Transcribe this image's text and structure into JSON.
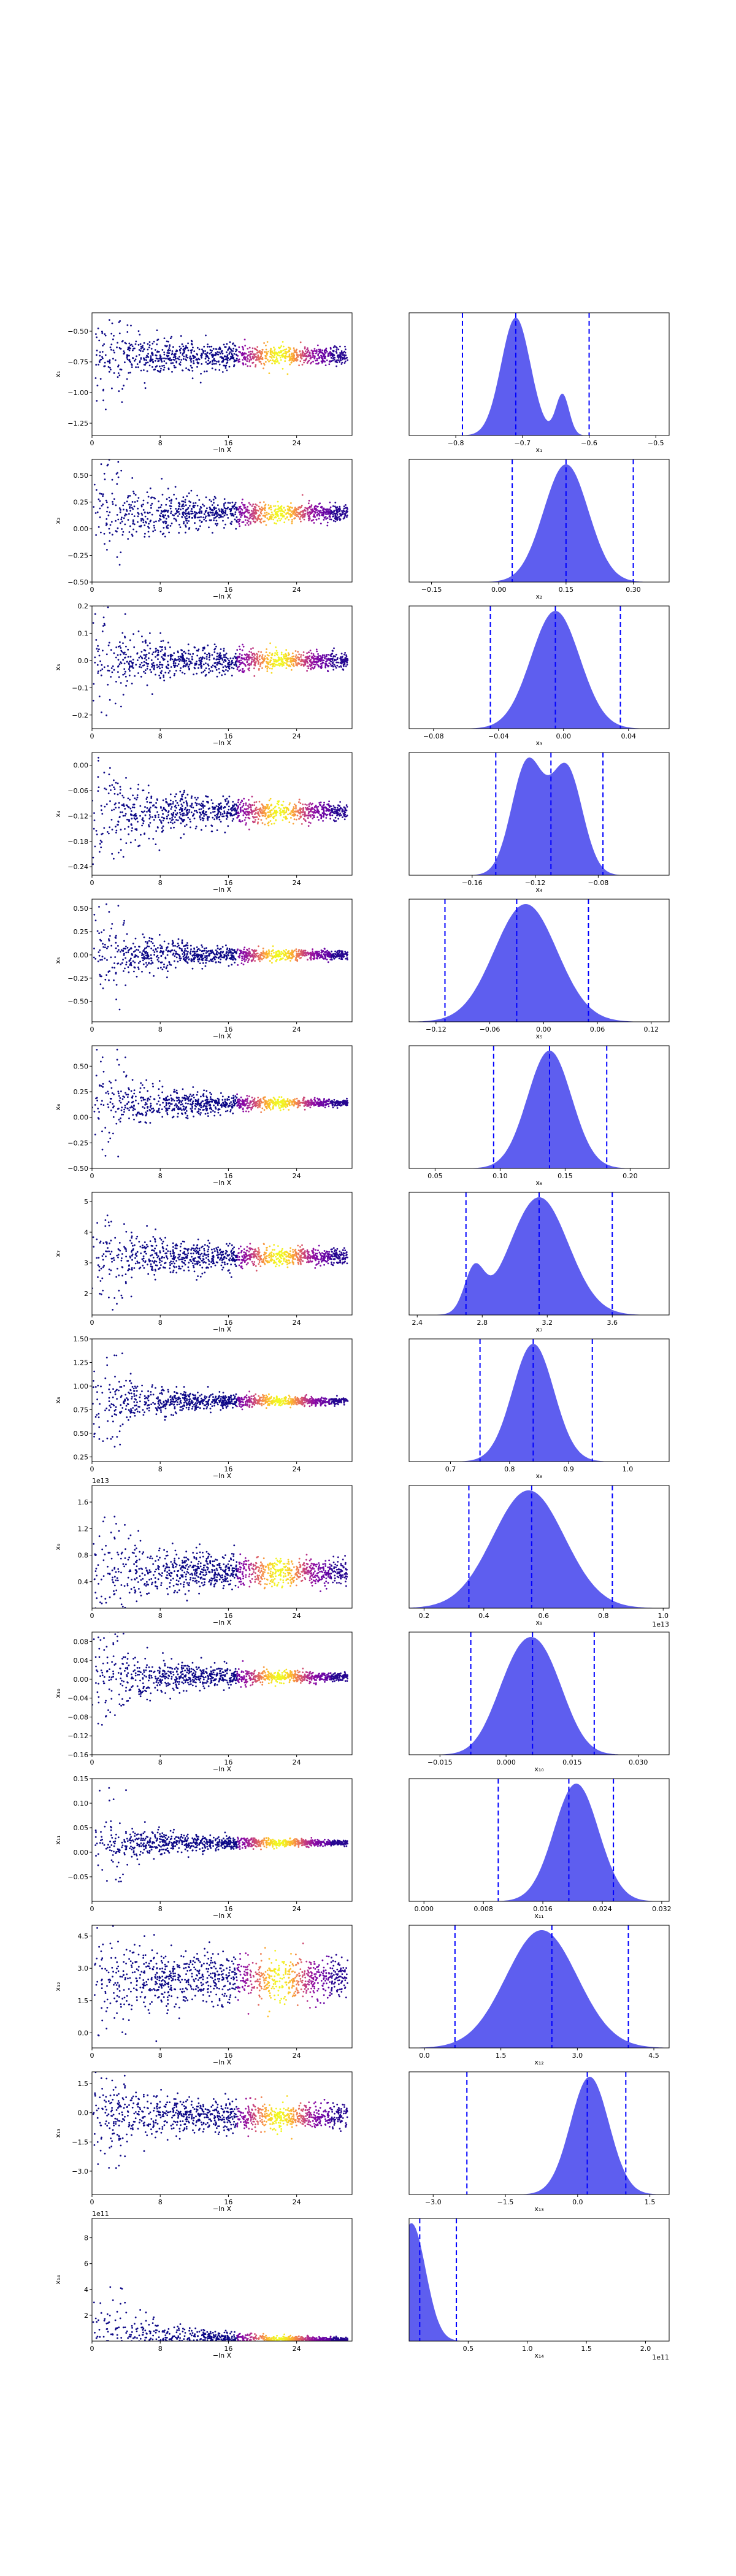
{
  "chart_data": {
    "type": "scatter",
    "description_free": true,
    "scatter_xlabel": "−ln X",
    "scatter_xticks": [
      0,
      8,
      16,
      24
    ],
    "scatter_xlim": [
      0,
      30.5
    ],
    "colormap": "plasma",
    "line_color": "#0000ff",
    "fill_color": "#5555ee",
    "dot_color": "#0d0887",
    "rows": [
      {
        "ylabel": "x₁",
        "xlabel": "x₁",
        "ylim": [
          -1.35,
          -0.35
        ],
        "yticks": [
          -1.25,
          -1.0,
          -0.75,
          -0.5
        ],
        "ytick_labels": [
          "−1.25",
          "−1.00",
          "−0.75",
          "−0.50"
        ],
        "center": -0.7,
        "spread0": 0.22,
        "spread1": 0.05,
        "kde_xlim": [
          -0.87,
          -0.48
        ],
        "kde_xticks": [
          -0.8,
          -0.7,
          -0.6,
          -0.5
        ],
        "kde_xtick_labels": [
          "−0.8",
          "−0.7",
          "−0.6",
          "−0.5"
        ],
        "vlines": [
          -0.79,
          -0.71,
          -0.6
        ],
        "peaks": [
          [
            -0.71,
            0.022,
            1.0
          ],
          [
            -0.64,
            0.01,
            0.35
          ]
        ],
        "offset": ""
      },
      {
        "ylabel": "x₂",
        "xlabel": "x₂",
        "ylim": [
          -0.5,
          0.65
        ],
        "yticks": [
          -0.5,
          -0.25,
          0.0,
          0.25,
          0.5
        ],
        "ytick_labels": [
          "−0.50",
          "−0.25",
          "0.00",
          "0.25",
          "0.50"
        ],
        "center": 0.15,
        "spread0": 0.3,
        "spread1": 0.06,
        "kde_xlim": [
          -0.2,
          0.38
        ],
        "kde_xticks": [
          -0.15,
          0.0,
          0.15,
          0.3
        ],
        "kde_xtick_labels": [
          "−0.15",
          "0.00",
          "0.15",
          "0.30"
        ],
        "vlines": [
          0.03,
          0.15,
          0.3
        ],
        "peaks": [
          [
            0.15,
            0.05,
            1.0
          ]
        ],
        "offset": ""
      },
      {
        "ylabel": "x₃",
        "xlabel": "x₃",
        "ylim": [
          -0.25,
          0.2
        ],
        "yticks": [
          -0.2,
          -0.1,
          0.0,
          0.1,
          0.2
        ],
        "ytick_labels": [
          "−0.2",
          "−0.1",
          "0.0",
          "0.1",
          "0.2"
        ],
        "center": 0.0,
        "spread0": 0.12,
        "spread1": 0.02,
        "kde_xlim": [
          -0.095,
          0.065
        ],
        "kde_xticks": [
          -0.08,
          -0.04,
          0.0,
          0.04
        ],
        "kde_xtick_labels": [
          "−0.08",
          "−0.04",
          "0.00",
          "0.04"
        ],
        "vlines": [
          -0.045,
          -0.005,
          0.035
        ],
        "peaks": [
          [
            -0.005,
            0.015,
            1.0
          ]
        ],
        "offset": ""
      },
      {
        "ylabel": "x₄",
        "xlabel": "x₄",
        "ylim": [
          -0.26,
          0.03
        ],
        "yticks": [
          -0.24,
          -0.18,
          -0.12,
          -0.06,
          0.0
        ],
        "ytick_labels": [
          "−0.24",
          "−0.18",
          "−0.12",
          "−0.06",
          "0.00"
        ],
        "center": -0.11,
        "spread0": 0.08,
        "spread1": 0.015,
        "kde_xlim": [
          -0.2,
          -0.035
        ],
        "kde_xticks": [
          -0.16,
          -0.12,
          -0.08
        ],
        "kde_xtick_labels": [
          "−0.16",
          "−0.12",
          "−0.08"
        ],
        "vlines": [
          -0.145,
          -0.11,
          -0.077
        ],
        "peaks": [
          [
            -0.125,
            0.01,
            1.0
          ],
          [
            -0.1,
            0.01,
            0.95
          ]
        ],
        "offset": ""
      },
      {
        "ylabel": "x₅",
        "xlabel": "x₅",
        "ylim": [
          -0.72,
          0.6
        ],
        "yticks": [
          -0.5,
          -0.25,
          0.0,
          0.25,
          0.5
        ],
        "ytick_labels": [
          "−0.50",
          "−0.25",
          "0.00",
          "0.25",
          "0.50"
        ],
        "center": 0.0,
        "spread0": 0.3,
        "spread1": 0.03,
        "kde_xlim": [
          -0.15,
          0.14
        ],
        "kde_xticks": [
          -0.12,
          -0.06,
          0.0,
          0.06,
          0.12
        ],
        "kde_xtick_labels": [
          "−0.12",
          "−0.06",
          "0.00",
          "0.06",
          "0.12"
        ],
        "vlines": [
          -0.11,
          -0.03,
          0.05
        ],
        "peaks": [
          [
            -0.02,
            0.035,
            1.0
          ]
        ],
        "offset": ""
      },
      {
        "ylabel": "x₆",
        "xlabel": "x₆",
        "ylim": [
          -0.5,
          0.7
        ],
        "yticks": [
          -0.5,
          -0.25,
          0.0,
          0.25,
          0.5
        ],
        "ytick_labels": [
          "−0.50",
          "−0.25",
          "0.00",
          "0.25",
          "0.50"
        ],
        "center": 0.14,
        "spread0": 0.3,
        "spread1": 0.02,
        "kde_xlim": [
          0.03,
          0.23
        ],
        "kde_xticks": [
          0.05,
          0.1,
          0.15,
          0.2
        ],
        "kde_xtick_labels": [
          "0.05",
          "0.10",
          "0.15",
          "0.20"
        ],
        "vlines": [
          0.095,
          0.138,
          0.182
        ],
        "peaks": [
          [
            0.138,
            0.017,
            1.0
          ]
        ],
        "offset": ""
      },
      {
        "ylabel": "x₇",
        "xlabel": "x₇",
        "ylim": [
          1.3,
          5.3
        ],
        "yticks": [
          2,
          3,
          4,
          5
        ],
        "ytick_labels": [
          "2",
          "3",
          "4",
          "5"
        ],
        "center": 3.2,
        "spread0": 1.0,
        "spread1": 0.18,
        "kde_xlim": [
          2.35,
          3.95
        ],
        "kde_xticks": [
          2.4,
          2.8,
          3.2,
          3.6
        ],
        "kde_xtick_labels": [
          "2.4",
          "2.8",
          "3.2",
          "3.6"
        ],
        "vlines": [
          2.7,
          3.15,
          3.6
        ],
        "peaks": [
          [
            3.15,
            0.18,
            1.0
          ],
          [
            2.75,
            0.06,
            0.35
          ]
        ],
        "offset": ""
      },
      {
        "ylabel": "x₈",
        "xlabel": "x₈",
        "ylim": [
          0.2,
          1.5
        ],
        "yticks": [
          0.25,
          0.5,
          0.75,
          1.0,
          1.25,
          1.5
        ],
        "ytick_labels": [
          "0.25",
          "0.50",
          "0.75",
          "1.00",
          "1.25",
          "1.50"
        ],
        "center": 0.84,
        "spread0": 0.3,
        "spread1": 0.02,
        "kde_xlim": [
          0.63,
          1.07
        ],
        "kde_xticks": [
          0.7,
          0.8,
          0.9,
          1.0
        ],
        "kde_xtick_labels": [
          "0.7",
          "0.8",
          "0.9",
          "1.0"
        ],
        "vlines": [
          0.75,
          0.84,
          0.94
        ],
        "peaks": [
          [
            0.84,
            0.035,
            1.0
          ]
        ],
        "offset": ""
      },
      {
        "ylabel": "x₉",
        "xlabel": "x₉",
        "ylim": [
          0.0,
          1.85
        ],
        "yticks": [
          0.4,
          0.8,
          1.2,
          1.6
        ],
        "ytick_labels": [
          "0.4",
          "0.8",
          "1.2",
          "1.6"
        ],
        "center": 0.55,
        "spread0": 0.45,
        "spread1": 0.15,
        "kde_xlim": [
          0.15,
          1.02
        ],
        "kde_xticks": [
          0.2,
          0.4,
          0.6,
          0.8,
          1.0
        ],
        "kde_xtick_labels": [
          "0.2",
          "0.4",
          "0.6",
          "0.8",
          "1.0"
        ],
        "vlines": [
          0.35,
          0.56,
          0.83
        ],
        "peaks": [
          [
            0.55,
            0.12,
            1.0
          ]
        ],
        "offset": "1e13"
      },
      {
        "ylabel": "x₁₀",
        "xlabel": "x₁₀",
        "ylim": [
          -0.16,
          0.1
        ],
        "yticks": [
          -0.16,
          -0.12,
          -0.08,
          -0.04,
          0.0,
          0.04,
          0.08
        ],
        "ytick_labels": [
          "−0.16",
          "−0.12",
          "−0.08",
          "−0.04",
          "0.00",
          "0.04",
          "0.08"
        ],
        "center": 0.005,
        "spread0": 0.07,
        "spread1": 0.006,
        "kde_xlim": [
          -0.022,
          0.037
        ],
        "kde_xticks": [
          -0.015,
          0.0,
          0.015,
          0.03
        ],
        "kde_xtick_labels": [
          "−0.015",
          "0.000",
          "0.015",
          "0.030"
        ],
        "vlines": [
          -0.008,
          0.006,
          0.02
        ],
        "peaks": [
          [
            0.002,
            0.005,
            0.95
          ],
          [
            0.009,
            0.005,
            1.0
          ]
        ],
        "offset": ""
      },
      {
        "ylabel": "x₁₁",
        "xlabel": "x₁₁",
        "ylim": [
          -0.1,
          0.15
        ],
        "yticks": [
          -0.05,
          0.0,
          0.05,
          0.1,
          0.15
        ],
        "ytick_labels": [
          "−0.05",
          "0.00",
          "0.05",
          "0.10",
          "0.15"
        ],
        "center": 0.019,
        "spread0": 0.05,
        "spread1": 0.003,
        "kde_xlim": [
          -0.002,
          0.033
        ],
        "kde_xticks": [
          0.0,
          0.008,
          0.016,
          0.024,
          0.032
        ],
        "kde_xtick_labels": [
          "0.000",
          "0.008",
          "0.016",
          "0.024",
          "0.032"
        ],
        "vlines": [
          0.01,
          0.0195,
          0.0255
        ],
        "peaks": [
          [
            0.0205,
            0.003,
            1.0
          ]
        ],
        "offset": ""
      },
      {
        "ylabel": "x₁₂",
        "xlabel": "x₁₂",
        "ylim": [
          -0.7,
          5.0
        ],
        "yticks": [
          0.0,
          1.5,
          3.0,
          4.5
        ],
        "ytick_labels": [
          "0.0",
          "1.5",
          "3.0",
          "4.5"
        ],
        "center": 2.5,
        "spread0": 1.2,
        "spread1": 0.8,
        "kde_xlim": [
          -0.3,
          4.8
        ],
        "kde_xticks": [
          0.0,
          1.5,
          3.0,
          4.5
        ],
        "kde_xtick_labels": [
          "0.0",
          "1.5",
          "3.0",
          "4.5"
        ],
        "vlines": [
          0.6,
          2.5,
          4.0
        ],
        "peaks": [
          [
            2.3,
            0.7,
            1.0
          ]
        ],
        "offset": ""
      },
      {
        "ylabel": "x₁₃",
        "xlabel": "x₁₃",
        "ylim": [
          -4.2,
          2.1
        ],
        "yticks": [
          -3.0,
          -1.5,
          0.0,
          1.5
        ],
        "ytick_labels": [
          "−3.0",
          "−1.5",
          "0.0",
          "1.5"
        ],
        "center": -0.2,
        "spread0": 1.2,
        "spread1": 0.5,
        "kde_xlim": [
          -3.5,
          1.9
        ],
        "kde_xticks": [
          -3.0,
          -1.5,
          0.0,
          1.5
        ],
        "kde_xtick_labels": [
          "−3.0",
          "−1.5",
          "0.0",
          "1.5"
        ],
        "vlines": [
          -2.3,
          0.2,
          1.0
        ],
        "peaks": [
          [
            0.25,
            0.4,
            1.0
          ]
        ],
        "offset": ""
      },
      {
        "ylabel": "x₁₄",
        "xlabel": "x₁₄",
        "ylim": [
          0.0,
          9.5
        ],
        "yticks": [
          2,
          4,
          6,
          8
        ],
        "ytick_labels": [
          "2",
          "4",
          "6",
          "8"
        ],
        "center": 0.1,
        "spread0": 3.0,
        "spread1": 0.05,
        "kde_xlim": [
          0.0,
          2.2
        ],
        "kde_xticks": [
          0.5,
          1.0,
          1.5,
          2.0
        ],
        "kde_xtick_labels": [
          "0.5",
          "1.0",
          "1.5",
          "2.0"
        ],
        "vlines": [
          0.09,
          0.4
        ],
        "peaks": [
          [
            0.02,
            0.12,
            1.0
          ]
        ],
        "offset": "1e11",
        "offset_right": "1e11"
      }
    ]
  }
}
